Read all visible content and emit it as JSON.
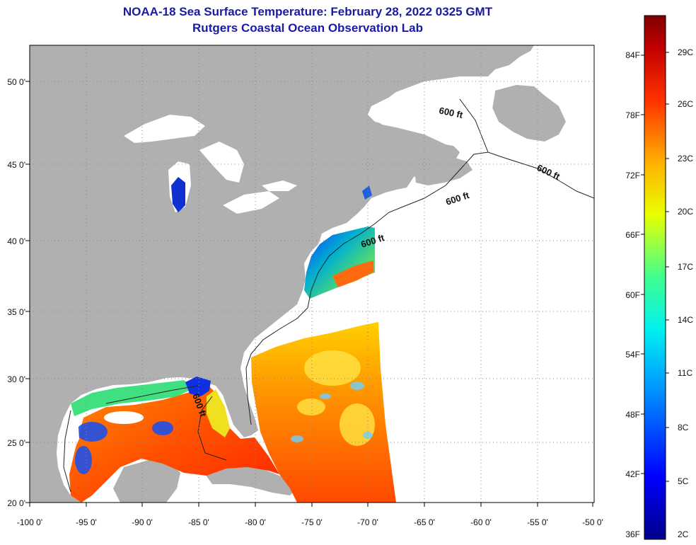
{
  "header": {
    "title": "NOAA-18 Sea Surface Temperature:  February 28, 2022 0325 GMT",
    "subtitle": "Rutgers Coastal Ocean Observation Lab"
  },
  "map": {
    "lon_ticks": [
      "-100 0'",
      "-95 0'",
      "-90 0'",
      "-85 0'",
      "-80 0'",
      "-75 0'",
      "-70 0'",
      "-65 0'",
      "-60 0'",
      "-55 0'",
      "-50 0'"
    ],
    "lat_ticks": [
      "50 0'",
      "45 0'",
      "40 0'",
      "35 0'",
      "30 0'",
      "25 0'",
      "20 0'"
    ],
    "contour_labels": [
      "600 ft",
      "600 ft",
      "600 ft",
      "600 ft",
      "600 ft"
    ],
    "colors": {
      "land": "#b0b0b0",
      "cloud": "#ffffff",
      "grid": "#888888"
    }
  },
  "colorbar": {
    "fahrenheit": [
      "84F",
      "78F",
      "72F",
      "66F",
      "60F",
      "54F",
      "48F",
      "42F",
      "36F"
    ],
    "celsius": [
      "29C",
      "26C",
      "23C",
      "20C",
      "17C",
      "14C",
      "11C",
      "8C",
      "5C",
      "2C"
    ]
  }
}
